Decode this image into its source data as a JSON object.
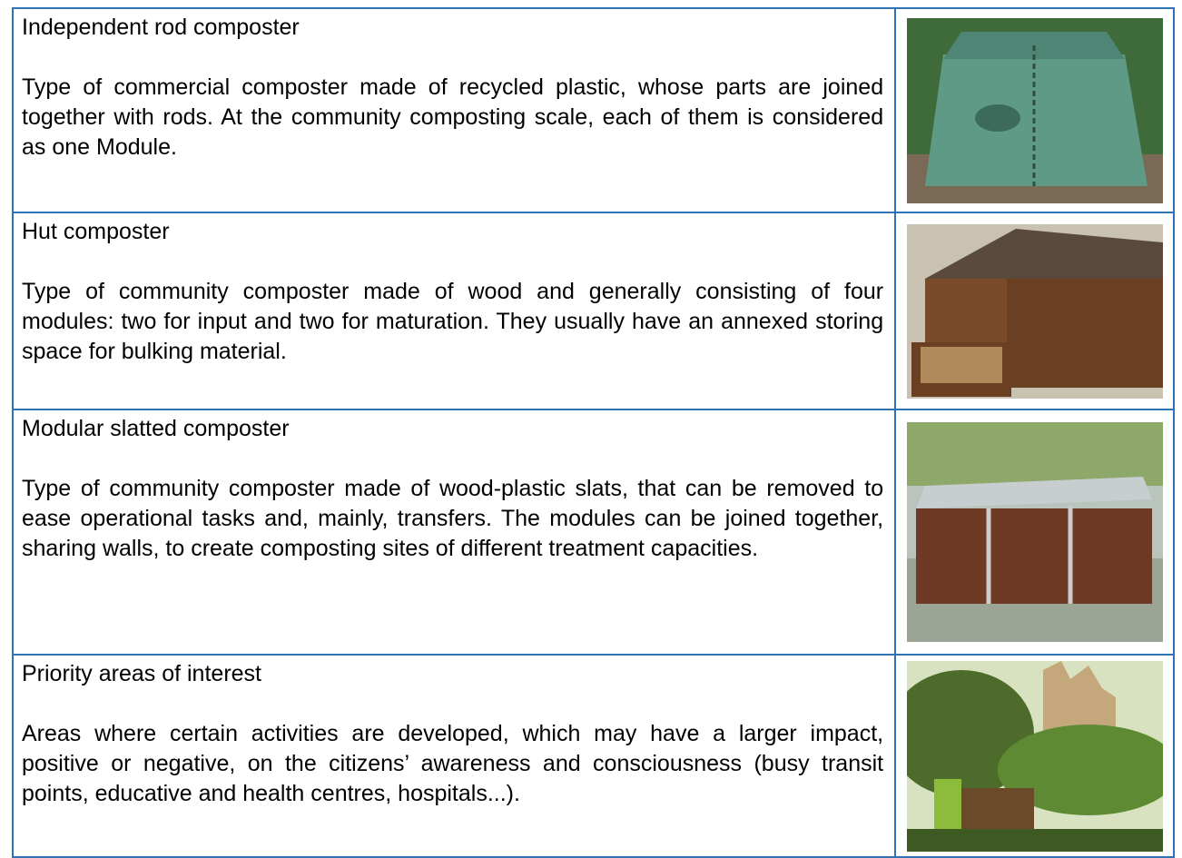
{
  "table": {
    "rows": [
      {
        "term": "Independent rod composter",
        "definition": "Type of commercial composter made of recycled plastic, whose parts are joined together with rods. At the community composting scale, each of them is considered as one Module."
      },
      {
        "term": "Hut composter",
        "definition": "Type of community composter made of wood and generally consisting of four modules: two for input and two for maturation. They usually have an annexed storing space for bulking material."
      },
      {
        "term": "Modular slatted composter",
        "definition": "Type of community composter made of wood-plastic slats, that can be removed to ease operational tasks and, mainly, transfers. The modules can be joined together, sharing walls, to create composting sites of different treatment capacities."
      },
      {
        "term": "Priority areas of interest",
        "definition": "Areas where certain activities are developed, which may have a larger impact, positive or negative, on the citizens’ awareness and consciousness (busy transit points, educative and health centres, hospitals...)."
      }
    ]
  }
}
